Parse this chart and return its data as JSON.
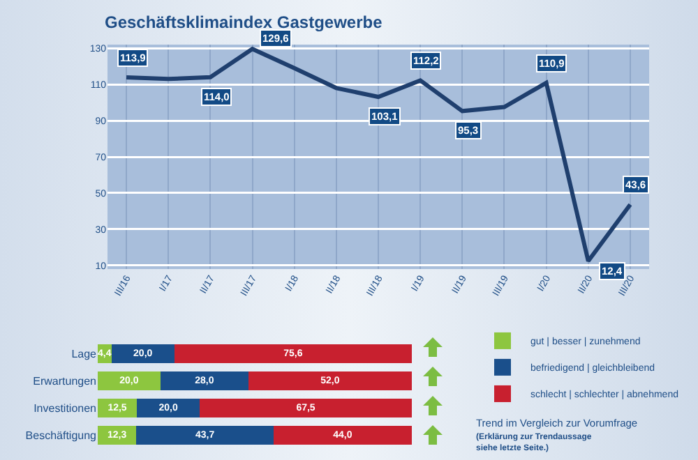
{
  "chart_data": [
    {
      "type": "line",
      "title": "Geschäftsklimaindex Gastgewerbe",
      "categories": [
        "III/16",
        "I/17",
        "II/17",
        "III/17",
        "I/18",
        "II/18",
        "III/18",
        "I/19",
        "II/19",
        "III/19",
        "I/20",
        "II/20",
        "III/20"
      ],
      "series": [
        {
          "color": "#1f3f6e",
          "values": [
            113.9,
            113,
            114.0,
            129.6,
            119,
            108,
            103.1,
            112.2,
            95.3,
            97.5,
            110.9,
            12.4,
            43.6
          ],
          "value_labels": [
            "113,9",
            null,
            "114,0",
            "129,6",
            null,
            null,
            "103,1",
            "112,2",
            "95,3",
            null,
            "110,9",
            "12,4",
            "43,6"
          ]
        }
      ],
      "ylim": [
        8,
        132
      ],
      "yticks": [
        10,
        30,
        50,
        70,
        90,
        110,
        130
      ],
      "grid": true
    },
    {
      "type": "bar",
      "orientation": "horizontal",
      "stacked": true,
      "categories": [
        "Lage",
        "Erwartungen",
        "Investitionen",
        "Beschäftigung"
      ],
      "series": [
        {
          "name": "gut | besser | zunehmend",
          "color": "#8dc63f",
          "values": [
            4.4,
            20.0,
            12.5,
            12.3
          ],
          "value_labels": [
            "4,4",
            "20,0",
            "12,5",
            "12,3"
          ]
        },
        {
          "name": "befriedigend | gleichbleibend",
          "color": "#1a4f8b",
          "values": [
            20.0,
            28.0,
            20.0,
            43.7
          ],
          "value_labels": [
            "20,0",
            "28,0",
            "20,0",
            "43,7"
          ]
        },
        {
          "name": "schlecht | schlechter | abnehmend",
          "color": "#c8202f",
          "values": [
            75.6,
            52.0,
            67.5,
            44.0
          ],
          "value_labels": [
            "75,6",
            "52,0",
            "67,5",
            "44,0"
          ]
        }
      ],
      "xlim": [
        0,
        100
      ],
      "tick_labels": "y",
      "legend": "right",
      "annotations": [
        "Trend im Vergleich zur Vorumfrage",
        "(Erklärung zur Trendaussage siehe letzte Seite.)"
      ]
    }
  ]
}
